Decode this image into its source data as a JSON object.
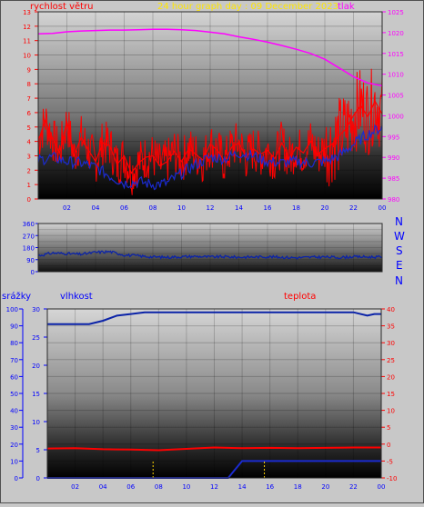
{
  "header": {
    "left_label": "rychlost větru",
    "title": "24 hour graph day : 09 December 2023",
    "right_label": "tlak"
  },
  "direction_labels": [
    "N",
    "W",
    "S",
    "E",
    "N"
  ],
  "bottom_header": {
    "left_label": "srážky",
    "mid_label": "vlhkost",
    "right_label": "teplota"
  },
  "colors": {
    "wind_speed": "#ff0000",
    "wind_gust": "#1b2bd0",
    "pressure": "#ff00ff",
    "direction": "#0b23a8",
    "humidity": "#0b23a8",
    "temperature": "#ff0000",
    "rain": "#1b2bd0",
    "title": "#ffe600",
    "axis_blue": "#0000ff",
    "axis_red": "#ff0000",
    "axis_magenta": "#ff00ff"
  },
  "chart_data": [
    {
      "type": "line",
      "xticks": [
        "02",
        "04",
        "06",
        "08",
        "10",
        "12",
        "14",
        "16",
        "18",
        "20",
        "22",
        "00"
      ],
      "y_left_ticks": [
        "0",
        "1",
        "2",
        "3",
        "4",
        "5",
        "6",
        "7",
        "8",
        "9",
        "10",
        "11",
        "12",
        "13"
      ],
      "y_right_ticks": [
        "980",
        "985",
        "990",
        "995",
        "1000",
        "1005",
        "1010",
        "1015",
        "1020",
        "1025"
      ],
      "ylim_left": [
        0,
        13
      ],
      "ylim_right": [
        980,
        1025
      ],
      "series": [
        {
          "role": "pressure",
          "axis": "right",
          "x": [
            0,
            1,
            2,
            3,
            4,
            5,
            6,
            7,
            8,
            9,
            10,
            11,
            12,
            13,
            14,
            15,
            16,
            17,
            18,
            19,
            20,
            21,
            22,
            23,
            24
          ],
          "values": [
            1019.7,
            1019.8,
            1020.2,
            1020.4,
            1020.5,
            1020.6,
            1020.6,
            1020.7,
            1020.8,
            1020.8,
            1020.7,
            1020.5,
            1020.1,
            1019.7,
            1019.0,
            1018.4,
            1017.7,
            1016.9,
            1016.0,
            1015.0,
            1013.6,
            1011.5,
            1009.4,
            1007.9,
            1007.2
          ]
        },
        {
          "role": "wind_speed",
          "axis": "left",
          "x": [
            0,
            0.5,
            1,
            1.5,
            2,
            2.5,
            3,
            3.5,
            4,
            4.5,
            5,
            5.5,
            6,
            6.5,
            7,
            7.5,
            8,
            8.5,
            9,
            9.5,
            10,
            10.5,
            11,
            11.5,
            12,
            12.5,
            13,
            13.5,
            14,
            14.5,
            15,
            15.5,
            16,
            16.5,
            17,
            17.5,
            18,
            18.5,
            19,
            19.5,
            20,
            20.5,
            21,
            21.5,
            22,
            22.5,
            23,
            23.5,
            24
          ],
          "values": [
            4.0,
            5.5,
            4.2,
            3.2,
            5.4,
            3.0,
            4.3,
            3.4,
            2.6,
            3.9,
            3.7,
            2.4,
            3.0,
            1.8,
            2.5,
            2.9,
            3.0,
            2.3,
            2.6,
            3.3,
            2.6,
            3.5,
            3.1,
            2.7,
            3.8,
            3.4,
            2.6,
            3.6,
            3.9,
            2.9,
            3.5,
            3.1,
            3.4,
            2.8,
            3.9,
            2.8,
            3.6,
            3.2,
            4.0,
            3.1,
            3.5,
            3.8,
            4.4,
            4.9,
            5.8,
            6.5,
            5.7,
            6.8,
            5.9
          ]
        },
        {
          "role": "wind_gust",
          "axis": "left",
          "x": [
            0,
            1,
            2,
            3,
            4,
            5,
            6,
            7,
            8,
            9,
            10,
            11,
            12,
            13,
            14,
            15,
            16,
            17,
            18,
            19,
            20,
            21,
            22,
            23,
            24
          ],
          "values": [
            2.7,
            2.9,
            2.6,
            2.5,
            2.2,
            1.6,
            1.1,
            1.2,
            1.0,
            1.1,
            1.8,
            2.4,
            2.9,
            2.8,
            3.2,
            3.0,
            2.6,
            2.5,
            2.6,
            2.5,
            2.6,
            3.0,
            3.8,
            4.5,
            5.0
          ]
        }
      ]
    },
    {
      "type": "line",
      "xticks": [
        "02",
        "04",
        "06",
        "08",
        "10",
        "12",
        "14",
        "16",
        "18",
        "20",
        "22",
        "00"
      ],
      "y_left_ticks": [
        "0",
        "45",
        "90",
        "135",
        "180",
        "225",
        "270",
        "315",
        "360"
      ],
      "ylim_left": [
        0,
        360
      ],
      "series": [
        {
          "role": "direction",
          "x": [
            0,
            1,
            2,
            3,
            4,
            5,
            6,
            7,
            8,
            9,
            10,
            11,
            12,
            13,
            14,
            15,
            16,
            17,
            18,
            19,
            20,
            21,
            22,
            23,
            24
          ],
          "values": [
            120,
            140,
            135,
            130,
            145,
            150,
            125,
            118,
            110,
            108,
            112,
            115,
            110,
            112,
            108,
            110,
            112,
            108,
            104,
            108,
            110,
            106,
            112,
            110,
            110
          ]
        }
      ]
    },
    {
      "type": "line",
      "xticks": [
        "02",
        "04",
        "06",
        "08",
        "10",
        "12",
        "14",
        "16",
        "18",
        "20",
        "22",
        "00"
      ],
      "y_left_outer_ticks": [
        "0",
        "10",
        "20",
        "30",
        "40",
        "50",
        "60",
        "70",
        "80",
        "90",
        "100"
      ],
      "y_left_inner_ticks": [
        "0",
        "5",
        "10",
        "15",
        "20",
        "25",
        "30"
      ],
      "y_right_ticks": [
        "-10",
        "-5",
        "0",
        "5",
        "10",
        "15",
        "20",
        "25",
        "30",
        "35",
        "40"
      ],
      "ylim_left_outer": [
        0,
        100
      ],
      "ylim_left_inner": [
        0,
        30
      ],
      "ylim_right": [
        -10,
        40
      ],
      "series": [
        {
          "role": "humidity",
          "axis": "left_outer",
          "x": [
            0,
            2,
            3,
            4,
            5,
            6,
            7,
            8,
            10,
            12,
            14,
            16,
            18,
            20,
            21,
            22,
            23,
            23.5,
            24
          ],
          "values": [
            91,
            91,
            91,
            93,
            96,
            97,
            98,
            98,
            98,
            98,
            98,
            98,
            98,
            98,
            98,
            98,
            96,
            97,
            97
          ]
        },
        {
          "role": "temperature",
          "axis": "right",
          "x": [
            0,
            2,
            4,
            6,
            8,
            10,
            12,
            14,
            16,
            18,
            20,
            22,
            24
          ],
          "values": [
            -1.3,
            -1.2,
            -1.5,
            -1.6,
            -1.8,
            -1.4,
            -1.0,
            -1.2,
            -1.1,
            -1.2,
            -1.1,
            -1.0,
            -1.0
          ]
        },
        {
          "role": "rain_total",
          "axis": "left_inner",
          "x": [
            0,
            12,
            13,
            14,
            16,
            18,
            20,
            22,
            24
          ],
          "values": [
            0,
            0,
            0,
            3.0,
            3.0,
            3.0,
            3.0,
            3.0,
            3.0
          ]
        }
      ]
    }
  ]
}
